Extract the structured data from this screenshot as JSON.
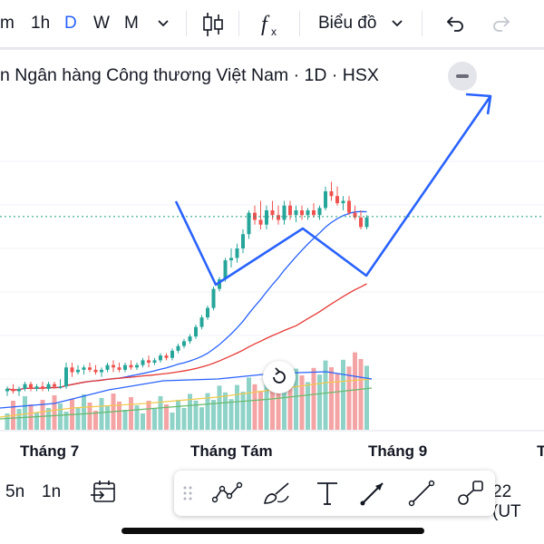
{
  "toolbar": {
    "interval_partial": "m",
    "interval_1h": "1h",
    "interval_D": "D",
    "interval_W": "W",
    "interval_M": "M",
    "chart_type_label": "Biểu đồ"
  },
  "symbol_title": "n Ngân hàng Công thương Việt Nam · 1D · HSX",
  "x_axis": {
    "labels": [
      "Tháng 7",
      "Tháng Tám",
      "Tháng 9",
      "T"
    ]
  },
  "bottom": {
    "range_5n": "5n",
    "range_1n": "1n",
    "timezone_partial": "22 (UT"
  },
  "colors": {
    "up": "#26a69a",
    "down": "#ef5350",
    "up_volume": "#8fd3c8",
    "down_volume": "#f4a4a4",
    "drawing": "#2962ff",
    "ma_fast": "#2962ff",
    "ma_slow": "#e53935",
    "ma_yellow": "#f2c94c",
    "ma_green": "#66bb6a",
    "price_line": "#1e9e7e"
  },
  "chart_data": {
    "type": "candlestick",
    "candles": [
      {
        "o": 2,
        "h": 3,
        "l": 1,
        "c": 2.5
      },
      {
        "o": 2.5,
        "h": 3.5,
        "l": 1.5,
        "c": 2
      },
      {
        "o": 2,
        "h": 3,
        "l": 1,
        "c": 2.5
      },
      {
        "o": 2.5,
        "h": 4,
        "l": 2,
        "c": 3.5
      },
      {
        "o": 3.5,
        "h": 4,
        "l": 2,
        "c": 2.5
      },
      {
        "o": 2.5,
        "h": 3.5,
        "l": 2,
        "c": 3
      },
      {
        "o": 3,
        "h": 4,
        "l": 2,
        "c": 2.5
      },
      {
        "o": 2.5,
        "h": 4,
        "l": 2,
        "c": 3.5
      },
      {
        "o": 3.5,
        "h": 4,
        "l": 2.5,
        "c": 3
      },
      {
        "o": 3,
        "h": 4.5,
        "l": 2.5,
        "c": 3
      },
      {
        "o": 3,
        "h": 8,
        "l": 2.5,
        "c": 7
      },
      {
        "o": 7,
        "h": 8,
        "l": 5,
        "c": 6
      },
      {
        "o": 6,
        "h": 7.5,
        "l": 5.5,
        "c": 6.5
      },
      {
        "o": 6.5,
        "h": 7.5,
        "l": 5.5,
        "c": 7
      },
      {
        "o": 7,
        "h": 8,
        "l": 6,
        "c": 6.5
      },
      {
        "o": 6.5,
        "h": 7.5,
        "l": 5.5,
        "c": 6
      },
      {
        "o": 6,
        "h": 7,
        "l": 5,
        "c": 6.5
      },
      {
        "o": 6.5,
        "h": 8,
        "l": 6,
        "c": 7.5
      },
      {
        "o": 7.5,
        "h": 8.5,
        "l": 6,
        "c": 7
      },
      {
        "o": 7,
        "h": 8,
        "l": 6,
        "c": 6.5
      },
      {
        "o": 6.5,
        "h": 8,
        "l": 6,
        "c": 7.5
      },
      {
        "o": 7.5,
        "h": 8.5,
        "l": 6.5,
        "c": 7
      },
      {
        "o": 7,
        "h": 8,
        "l": 6.5,
        "c": 7.5
      },
      {
        "o": 7.5,
        "h": 9,
        "l": 7,
        "c": 8.5
      },
      {
        "o": 8.5,
        "h": 9.5,
        "l": 7,
        "c": 8
      },
      {
        "o": 8,
        "h": 9,
        "l": 7.5,
        "c": 8.5
      },
      {
        "o": 8.5,
        "h": 10,
        "l": 8,
        "c": 9.5
      },
      {
        "o": 9.5,
        "h": 10,
        "l": 8.5,
        "c": 9
      },
      {
        "o": 9,
        "h": 11,
        "l": 8.5,
        "c": 10.5
      },
      {
        "o": 10.5,
        "h": 12,
        "l": 10,
        "c": 11.5
      },
      {
        "o": 11.5,
        "h": 13,
        "l": 11,
        "c": 12.5
      },
      {
        "o": 12.5,
        "h": 14,
        "l": 12,
        "c": 13.5
      },
      {
        "o": 13.5,
        "h": 16,
        "l": 13,
        "c": 15.5
      },
      {
        "o": 15.5,
        "h": 18,
        "l": 15,
        "c": 17.5
      },
      {
        "o": 17.5,
        "h": 20,
        "l": 17,
        "c": 19.5
      },
      {
        "o": 19.5,
        "h": 24,
        "l": 19,
        "c": 23.5
      },
      {
        "o": 23.5,
        "h": 26,
        "l": 23,
        "c": 25.5
      },
      {
        "o": 25.5,
        "h": 30,
        "l": 25,
        "c": 29.5
      },
      {
        "o": 29.5,
        "h": 32,
        "l": 28,
        "c": 30
      },
      {
        "o": 30,
        "h": 33,
        "l": 29,
        "c": 32
      },
      {
        "o": 32,
        "h": 36,
        "l": 31,
        "c": 35
      },
      {
        "o": 35,
        "h": 40,
        "l": 34,
        "c": 39.5
      },
      {
        "o": 39.5,
        "h": 41,
        "l": 37,
        "c": 38
      },
      {
        "o": 38,
        "h": 42,
        "l": 36,
        "c": 37
      },
      {
        "o": 37,
        "h": 41,
        "l": 36,
        "c": 40
      },
      {
        "o": 40,
        "h": 42,
        "l": 38,
        "c": 39
      },
      {
        "o": 39,
        "h": 41,
        "l": 37,
        "c": 38
      },
      {
        "o": 38,
        "h": 42,
        "l": 37,
        "c": 41
      },
      {
        "o": 41,
        "h": 42,
        "l": 38,
        "c": 39
      },
      {
        "o": 39,
        "h": 41,
        "l": 37.5,
        "c": 40
      },
      {
        "o": 40,
        "h": 41,
        "l": 38,
        "c": 39
      },
      {
        "o": 39,
        "h": 40.5,
        "l": 38,
        "c": 40
      },
      {
        "o": 40,
        "h": 41.5,
        "l": 38.5,
        "c": 39
      },
      {
        "o": 39,
        "h": 41,
        "l": 38,
        "c": 40.5
      },
      {
        "o": 40.5,
        "h": 45,
        "l": 40,
        "c": 44
      },
      {
        "o": 44,
        "h": 46,
        "l": 42,
        "c": 43
      },
      {
        "o": 43,
        "h": 45,
        "l": 41,
        "c": 41.5
      },
      {
        "o": 41.5,
        "h": 43,
        "l": 40,
        "c": 42
      },
      {
        "o": 42,
        "h": 43,
        "l": 39,
        "c": 39.5
      },
      {
        "o": 39.5,
        "h": 41,
        "l": 38,
        "c": 38.5
      },
      {
        "o": 38.5,
        "h": 40,
        "l": 36,
        "c": 36.5
      },
      {
        "o": 36.5,
        "h": 39,
        "l": 36,
        "c": 38.5
      }
    ],
    "ylim": [
      0,
      48
    ]
  }
}
